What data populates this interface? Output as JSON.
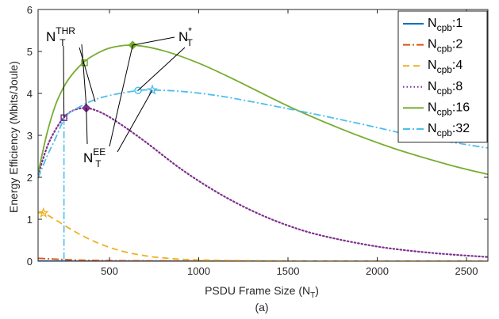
{
  "chart_data": {
    "type": "line",
    "xlabel": "PSDU Frame Size (N",
    "xlabel_sub": "T",
    "xlabel_close": ")",
    "ylabel": "Energy Efficiency (Mbits/Joule)",
    "caption": "(a)",
    "xlim": [
      100,
      2620
    ],
    "ylim": [
      0,
      6
    ],
    "xticks": [
      500,
      1000,
      1500,
      2000,
      2500
    ],
    "yticks": [
      0,
      1,
      2,
      3,
      4,
      5,
      6
    ],
    "legend_position": "top-right",
    "series": [
      {
        "name": "N",
        "sub": "cpb",
        "suffix": ":1",
        "color": "#0072BD",
        "dash": "solid",
        "x": [
          100,
          200,
          300,
          500,
          1000,
          1500,
          2000,
          2620
        ],
        "y": [
          0.006,
          0.004,
          0.003,
          0.002,
          0.001,
          0.001,
          0.0005,
          0.0003
        ]
      },
      {
        "name": "N",
        "sub": "cpb",
        "suffix": ":2",
        "color": "#D95319",
        "dash": "dashdot",
        "x": [
          100,
          150,
          200,
          250,
          300,
          400,
          600,
          1000,
          1500,
          2620
        ],
        "y": [
          0.07,
          0.06,
          0.05,
          0.04,
          0.03,
          0.02,
          0.012,
          0.006,
          0.003,
          0.001
        ]
      },
      {
        "name": "N",
        "sub": "cpb",
        "suffix": ":4",
        "color": "#EDB120",
        "dash": "dashed",
        "x": [
          100,
          130,
          200,
          300,
          400,
          500,
          600,
          700,
          800,
          1000,
          1500,
          2000,
          2620
        ],
        "y": [
          1.15,
          1.15,
          0.98,
          0.72,
          0.5,
          0.33,
          0.21,
          0.13,
          0.08,
          0.03,
          0.005,
          0.002,
          0.001
        ]
      },
      {
        "name": "N",
        "sub": "cpb",
        "suffix": ":8",
        "color": "#7E2F8E",
        "dash": "dotted",
        "x": [
          100,
          150,
          200,
          250,
          300,
          370,
          450,
          550,
          700,
          900,
          1100,
          1300,
          1500,
          1700,
          2000,
          2300,
          2620
        ],
        "y": [
          2.05,
          2.72,
          3.15,
          3.45,
          3.6,
          3.65,
          3.55,
          3.3,
          2.85,
          2.2,
          1.65,
          1.2,
          0.85,
          0.6,
          0.35,
          0.2,
          0.1
        ]
      },
      {
        "name": "N",
        "sub": "cpb",
        "suffix": ":16",
        "color": "#77AC30",
        "dash": "solid",
        "x": [
          100,
          150,
          200,
          250,
          300,
          350,
          400,
          500,
          630,
          800,
          1000,
          1200,
          1500,
          1800,
          2100,
          2400,
          2620
        ],
        "y": [
          2.1,
          3.05,
          3.75,
          4.2,
          4.5,
          4.72,
          4.88,
          5.08,
          5.15,
          5.02,
          4.72,
          4.33,
          3.7,
          3.15,
          2.68,
          2.3,
          2.07
        ]
      },
      {
        "name": "N",
        "sub": "cpb",
        "suffix": ":32",
        "color": "#4DBEEE",
        "dash": "dashdot",
        "x": [
          100,
          150,
          200,
          250,
          300,
          400,
          500,
          660,
          740,
          900,
          1100,
          1300,
          1600,
          1900,
          2200,
          2500,
          2620
        ],
        "y": [
          1.98,
          2.5,
          2.95,
          3.42,
          3.6,
          3.82,
          3.95,
          4.07,
          4.08,
          4.05,
          3.95,
          3.8,
          3.55,
          3.28,
          3.0,
          2.78,
          2.7
        ]
      }
    ],
    "vertical_line": {
      "x": 245,
      "y": 3.42,
      "color": "#4DBEEE"
    },
    "markers": [
      {
        "x": 245,
        "y": 3.42,
        "shape": "square",
        "color": "#7E2F8E"
      },
      {
        "x": 370,
        "y": 3.65,
        "shape": "diamond",
        "color": "#7E2F8E"
      },
      {
        "x": 360,
        "y": 4.73,
        "shape": "square",
        "color": "#77AC30"
      },
      {
        "x": 630,
        "y": 5.15,
        "shape": "diamond",
        "color": "#77AC30"
      },
      {
        "x": 660,
        "y": 4.07,
        "shape": "circle",
        "color": "#4DBEEE"
      },
      {
        "x": 740,
        "y": 4.08,
        "shape": "star",
        "color": "#4DBEEE"
      },
      {
        "x": 130,
        "y": 1.15,
        "shape": "star",
        "color": "#EDB120"
      }
    ],
    "annotations": [
      {
        "main": "N",
        "sub": "T",
        "sup": "THR"
      },
      {
        "main": "N",
        "sub": "T",
        "sup": "*"
      },
      {
        "main": "N",
        "sub": "T",
        "sup": "EE"
      }
    ]
  }
}
